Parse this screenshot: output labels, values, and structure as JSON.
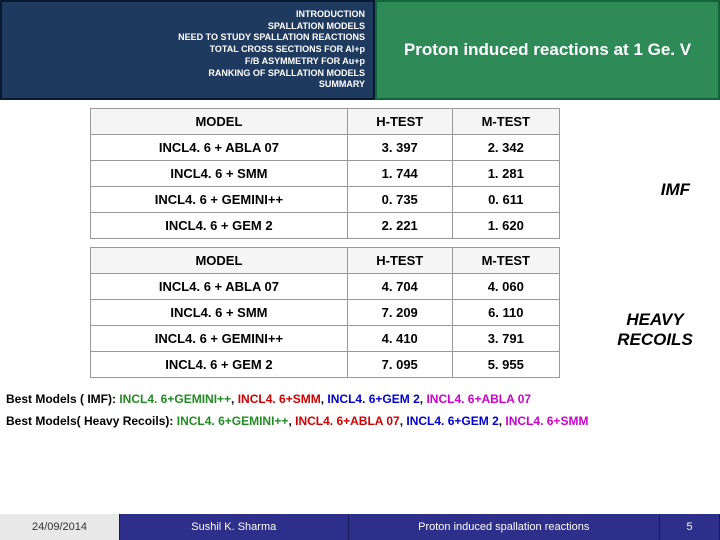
{
  "nav": {
    "items": [
      "INTRODUCTION",
      "SPALLATION MODELS",
      "NEED TO STUDY SPALLATION REACTIONS",
      "TOTAL CROSS SECTIONS FOR Al+p",
      "F/B ASYMMETRY FOR Au+p",
      "RANKING OF SPALLATION MODELS",
      "SUMMARY"
    ]
  },
  "title": "Proton induced reactions at 1 Ge. V",
  "table1": {
    "headers": [
      "MODEL",
      "H-TEST",
      "M-TEST"
    ],
    "rows": [
      [
        "INCL4. 6 + ABLA 07",
        "3. 397",
        "2. 342"
      ],
      [
        "INCL4. 6 + SMM",
        "1. 744",
        "1. 281"
      ],
      [
        "INCL4. 6 + GEMINI++",
        "0. 735",
        "0. 611"
      ],
      [
        "INCL4. 6 + GEM 2",
        "2. 221",
        "1. 620"
      ]
    ],
    "side_label": "IMF"
  },
  "table2": {
    "headers": [
      "MODEL",
      "H-TEST",
      "M-TEST"
    ],
    "rows": [
      [
        "INCL4. 6 + ABLA 07",
        "4. 704",
        "4. 060"
      ],
      [
        "INCL4. 6 + SMM",
        "7. 209",
        "6. 110"
      ],
      [
        "INCL4. 6 + GEMINI++",
        "4. 410",
        "3. 791"
      ],
      [
        "INCL4. 6 + GEM 2",
        "7. 095",
        "5. 955"
      ]
    ],
    "side_label": "HEAVY RECOILS"
  },
  "best": {
    "line1_label": "Best Models ( IMF): ",
    "line1_items": [
      "INCL4. 6+GEMINI++",
      "INCL4. 6+SMM",
      "INCL4. 6+GEM 2",
      "INCL4. 6+ABLA 07"
    ],
    "line2_label": "Best Models( Heavy Recoils):",
    "line2_items": [
      "INCL4. 6+GEMINI++",
      "INCL4. 6+ABLA 07",
      "INCL4. 6+GEM 2",
      "INCL4. 6+SMM"
    ],
    "colors": {
      "first": "#228B22",
      "second": "#cc0000",
      "third": "#0000cc",
      "fourth": "#cc00cc"
    }
  },
  "footer": {
    "date": "24/09/2014",
    "author": "Sushil K. Sharma",
    "topic": "Proton induced spallation reactions",
    "page": "5"
  }
}
